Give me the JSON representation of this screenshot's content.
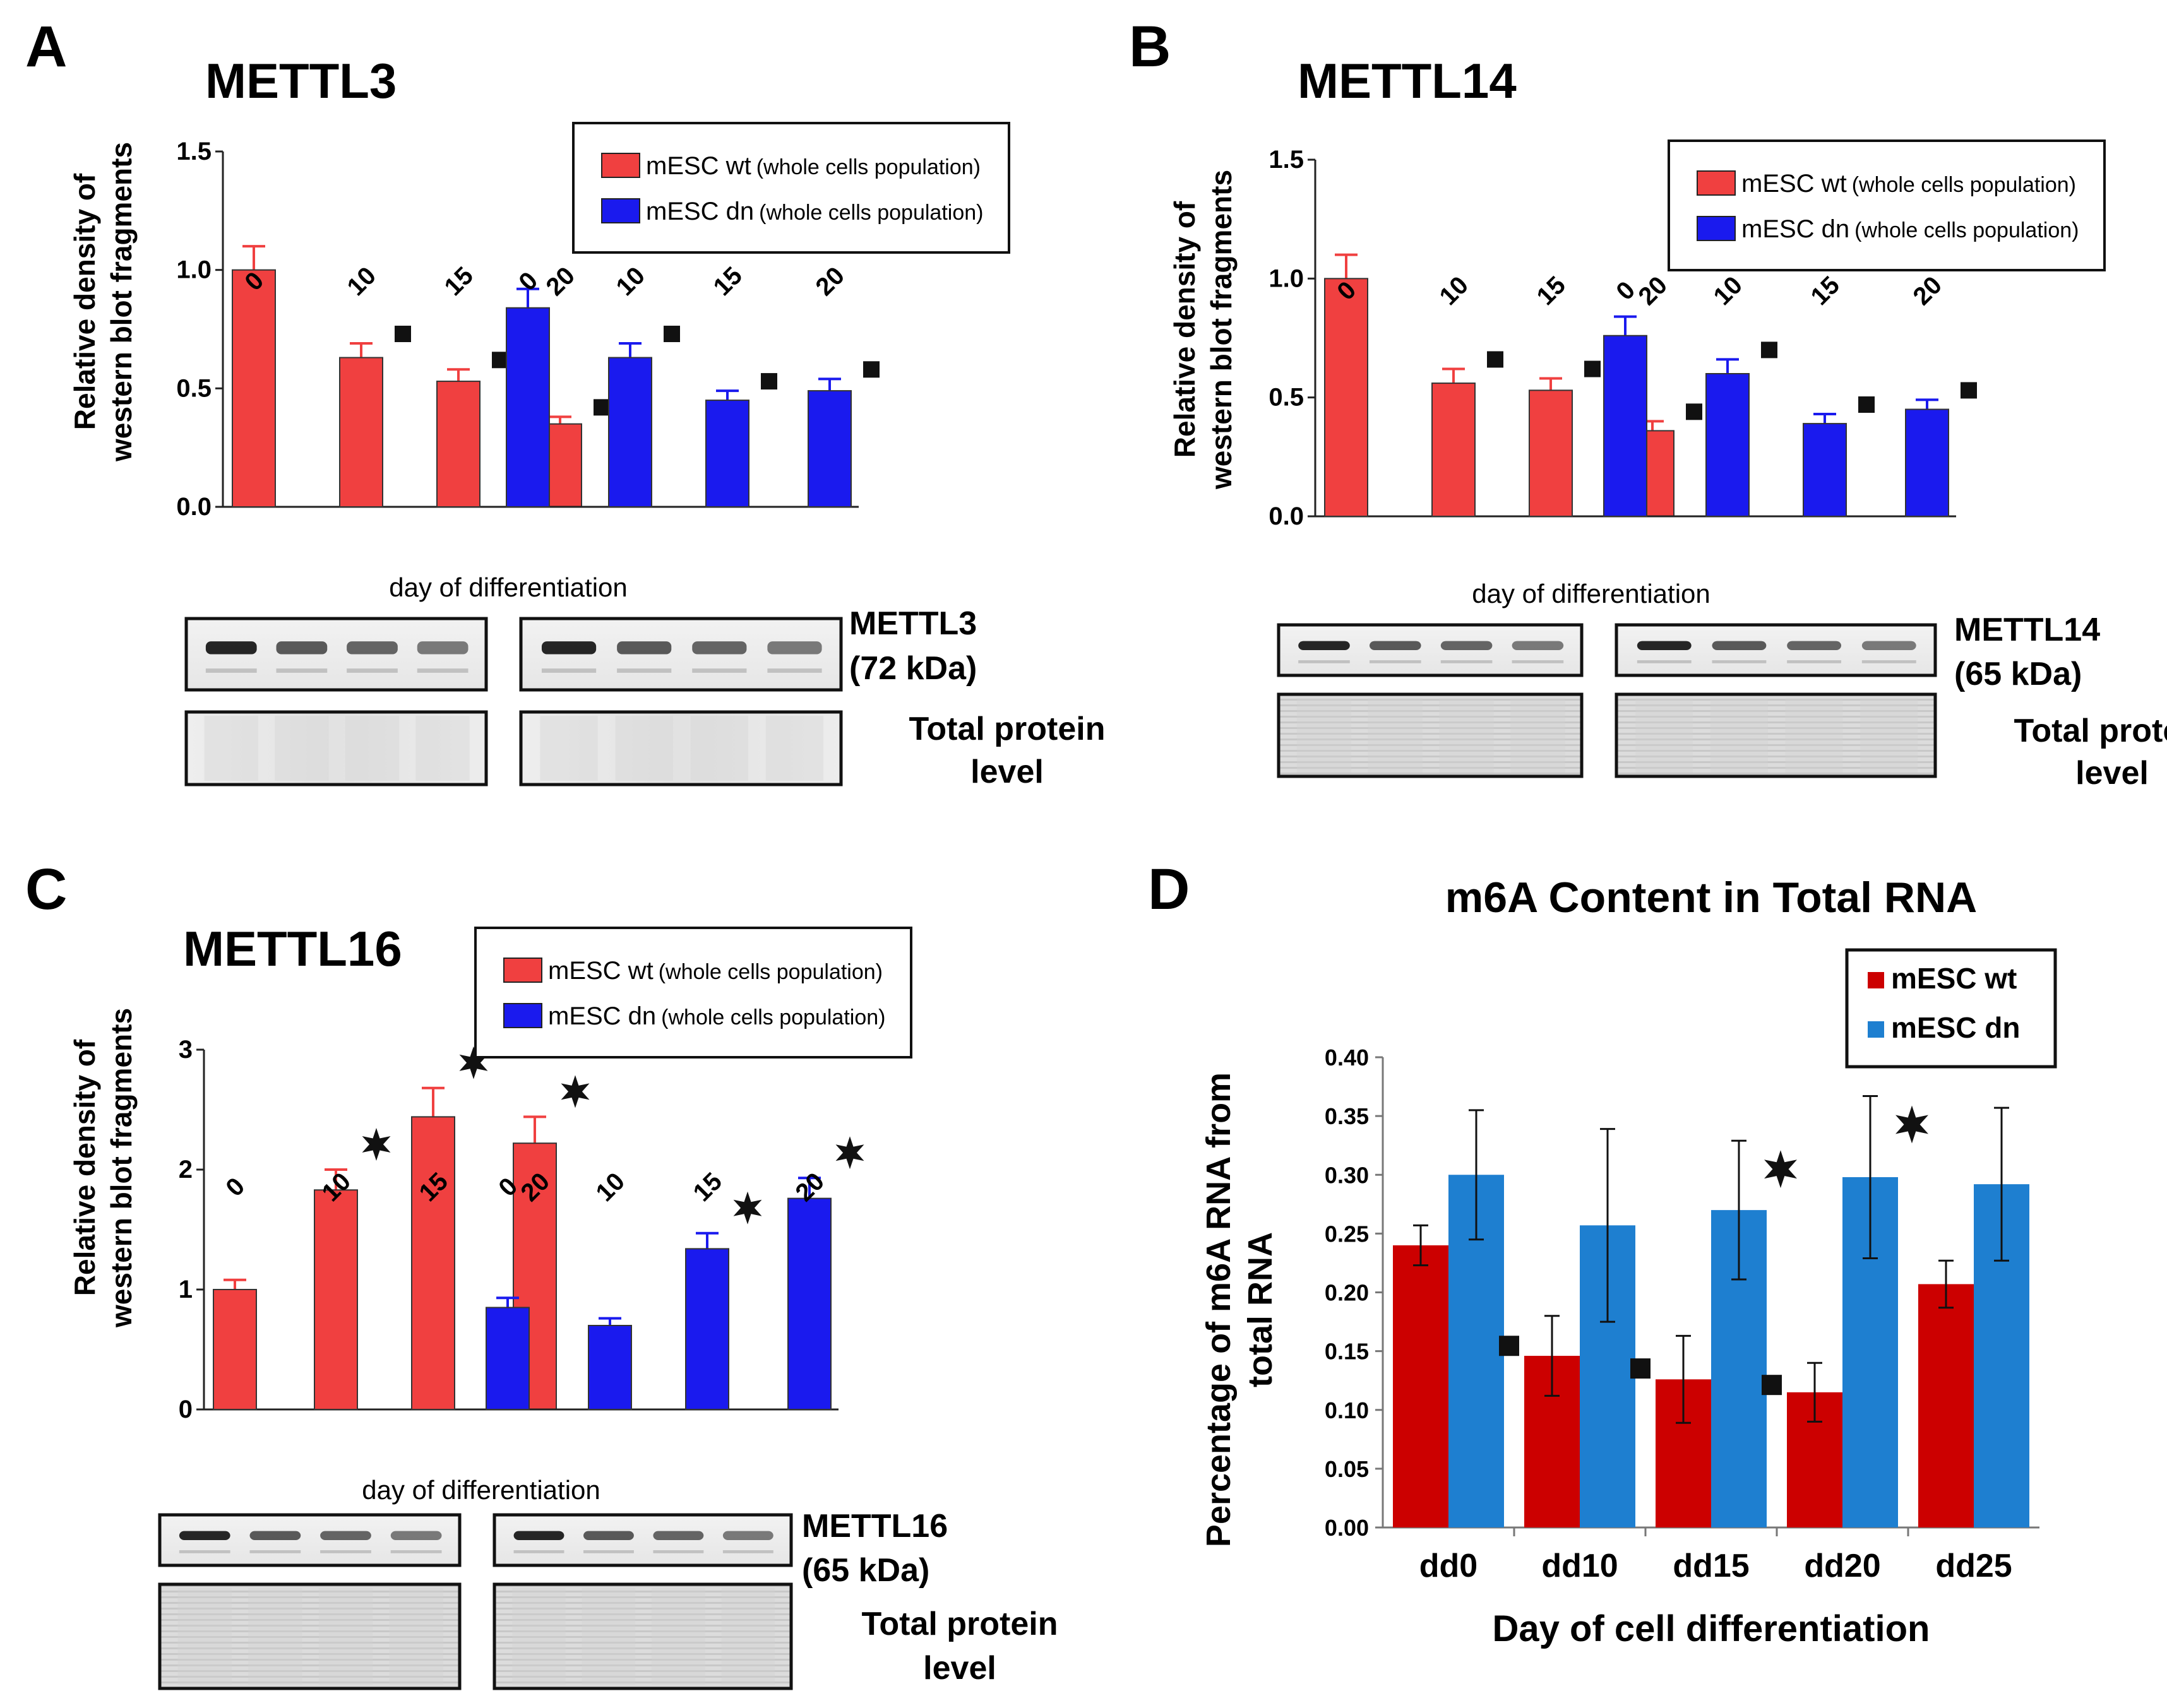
{
  "chart_data": [
    {
      "id": "A",
      "type": "bar",
      "panel_letter": "A",
      "title": "METTL3",
      "ylabel_lines": [
        "Relative density of",
        "western blot fragments"
      ],
      "xlabel": "day of differentiation",
      "ylim": [
        0,
        1.5
      ],
      "yticks": [
        0,
        0.5,
        1.0,
        1.5
      ],
      "ytick_labels": [
        "0.0",
        "0.5",
        "1.0",
        "1.5"
      ],
      "group_colors": [
        "#f04040",
        "#1a1aee"
      ],
      "groups": [
        {
          "name": "mESC wt",
          "note": "(whole cells population)",
          "color": "#f04040",
          "categories": [
            "0",
            "10",
            "15",
            "20"
          ],
          "values": [
            1.0,
            0.63,
            0.53,
            0.35
          ],
          "errors": [
            0.1,
            0.06,
            0.05,
            0.03
          ],
          "markers": [
            "",
            "square",
            "square",
            "square"
          ]
        },
        {
          "name": "mESC dn",
          "note": "(whole cells population)",
          "color": "#1a1aee",
          "categories": [
            "0",
            "10",
            "15",
            "20"
          ],
          "values": [
            0.84,
            0.63,
            0.45,
            0.49
          ],
          "errors": [
            0.08,
            0.06,
            0.04,
            0.05
          ],
          "markers": [
            "",
            "square",
            "square",
            "square"
          ]
        }
      ],
      "blots": {
        "protein": "METTL3",
        "size": "(72 kDa)",
        "total_lines": [
          "Total protein",
          "level"
        ]
      }
    },
    {
      "id": "B",
      "type": "bar",
      "panel_letter": "B",
      "title": "METTL14",
      "ylabel_lines": [
        "Relative density of",
        "western blot fragments"
      ],
      "xlabel": "day of differentiation",
      "ylim": [
        0,
        1.5
      ],
      "yticks": [
        0,
        0.5,
        1.0,
        1.5
      ],
      "ytick_labels": [
        "0.0",
        "0.5",
        "1.0",
        "1.5"
      ],
      "group_colors": [
        "#f04040",
        "#1a1aee"
      ],
      "groups": [
        {
          "name": "mESC wt",
          "note": "(whole cells population)",
          "color": "#f04040",
          "categories": [
            "0",
            "10",
            "15",
            "20"
          ],
          "values": [
            1.0,
            0.56,
            0.53,
            0.36
          ],
          "errors": [
            0.1,
            0.06,
            0.05,
            0.04
          ],
          "markers": [
            "",
            "square",
            "square",
            "square"
          ]
        },
        {
          "name": "mESC dn",
          "note": "(whole cells population)",
          "color": "#1a1aee",
          "categories": [
            "0",
            "10",
            "15",
            "20"
          ],
          "values": [
            0.76,
            0.6,
            0.39,
            0.45
          ],
          "errors": [
            0.08,
            0.06,
            0.04,
            0.04
          ],
          "markers": [
            "",
            "square",
            "square",
            "square"
          ]
        }
      ],
      "blots": {
        "protein": "METTL14",
        "size": "(65 kDa)",
        "total_lines": [
          "Total protein",
          "level"
        ]
      }
    },
    {
      "id": "C",
      "type": "bar",
      "panel_letter": "C",
      "title": "METTL16",
      "ylabel_lines": [
        "Relative density of",
        "western blot fragments"
      ],
      "xlabel": "day of differentiation",
      "ylim": [
        0,
        3
      ],
      "yticks": [
        0,
        1,
        2,
        3
      ],
      "ytick_labels": [
        "0",
        "1",
        "2",
        "3"
      ],
      "group_colors": [
        "#f04040",
        "#1a1aee"
      ],
      "groups": [
        {
          "name": "mESC wt",
          "note": "(whole cells population)",
          "color": "#f04040",
          "categories": [
            "0",
            "10",
            "15",
            "20"
          ],
          "values": [
            1.0,
            1.83,
            2.44,
            2.22
          ],
          "errors": [
            0.08,
            0.17,
            0.24,
            0.22
          ],
          "markers": [
            "",
            "*",
            "*",
            "*"
          ]
        },
        {
          "name": "mESC dn",
          "note": "(whole cells population)",
          "color": "#1a1aee",
          "categories": [
            "0",
            "10",
            "15",
            "20"
          ],
          "values": [
            0.85,
            0.7,
            1.34,
            1.76
          ],
          "errors": [
            0.08,
            0.06,
            0.13,
            0.17
          ],
          "markers": [
            "",
            "",
            "*",
            "*"
          ]
        }
      ],
      "blots": {
        "protein": "METTL16",
        "size": "(65 kDa)",
        "total_lines": [
          "Total protein",
          "level"
        ]
      }
    },
    {
      "id": "D",
      "type": "bar",
      "panel_letter": "D",
      "title": "m6A Content in Total RNA",
      "ylabel_lines": [
        "Percentage of m6A RNA from",
        "total RNA"
      ],
      "xlabel": "Day of cell differentiation",
      "ylim": [
        0,
        0.4
      ],
      "yticks": [
        0,
        0.05,
        0.1,
        0.15,
        0.2,
        0.25,
        0.3,
        0.35,
        0.4
      ],
      "ytick_labels": [
        "0.00",
        "0.05",
        "0.10",
        "0.15",
        "0.20",
        "0.25",
        "0.30",
        "0.35",
        "0.40"
      ],
      "categories": [
        "dd0",
        "dd10",
        "dd15",
        "dd20",
        "dd25"
      ],
      "series": [
        {
          "name": "mESC wt",
          "color": "#cc0000",
          "values": [
            0.24,
            0.146,
            0.126,
            0.115,
            0.207
          ],
          "errors": [
            0.017,
            0.034,
            0.037,
            0.025,
            0.02
          ],
          "markers": [
            "",
            "square",
            "square",
            "square",
            ""
          ]
        },
        {
          "name": "mESC dn",
          "color": "#1e7fd0",
          "values": [
            0.3,
            0.257,
            0.27,
            0.298,
            0.292
          ],
          "errors": [
            0.055,
            0.082,
            0.059,
            0.069,
            0.065
          ],
          "markers": [
            "",
            "",
            "*",
            "*",
            ""
          ]
        }
      ]
    }
  ]
}
